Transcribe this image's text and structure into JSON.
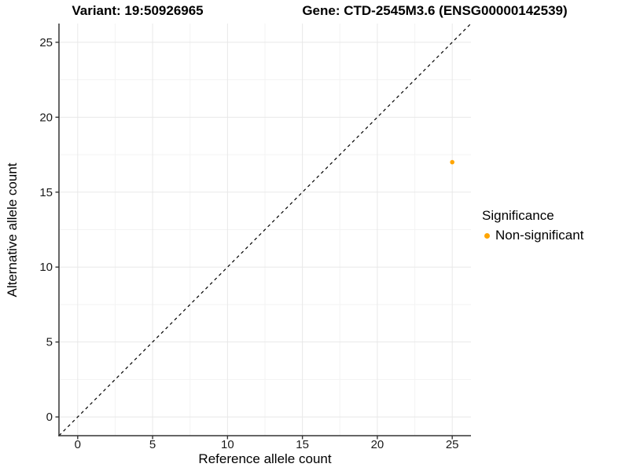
{
  "header": {
    "variant_title": "Variant: 19:50926965",
    "gene_title": "Gene: CTD-2545M3.6 (ENSG00000142539)"
  },
  "chart_data": {
    "type": "scatter",
    "xlabel": "Reference allele count",
    "ylabel": "Alternative allele count",
    "xlim": [
      -1.25,
      26.25
    ],
    "ylim": [
      -1.25,
      26.25
    ],
    "xticks": [
      0,
      5,
      10,
      15,
      20,
      25
    ],
    "yticks": [
      0,
      5,
      10,
      15,
      20,
      25
    ],
    "grid": {
      "major_color": "#E8E8E8",
      "minor_color": "#F3F3F3"
    },
    "axis_color": "#333333",
    "tick_label_color": "#1a1a1a",
    "reference_line": {
      "type": "identity y=x",
      "style": "dashed",
      "color": "#000000"
    },
    "series": [
      {
        "name": "Non-significant",
        "color": "#FFA500",
        "point_radius": 2.8,
        "points": [
          {
            "x": 25,
            "y": 17
          }
        ]
      }
    ],
    "legend": {
      "title": "Significance",
      "position": "right",
      "items": [
        {
          "label": "Non-significant",
          "color": "#FFA500"
        }
      ]
    }
  }
}
